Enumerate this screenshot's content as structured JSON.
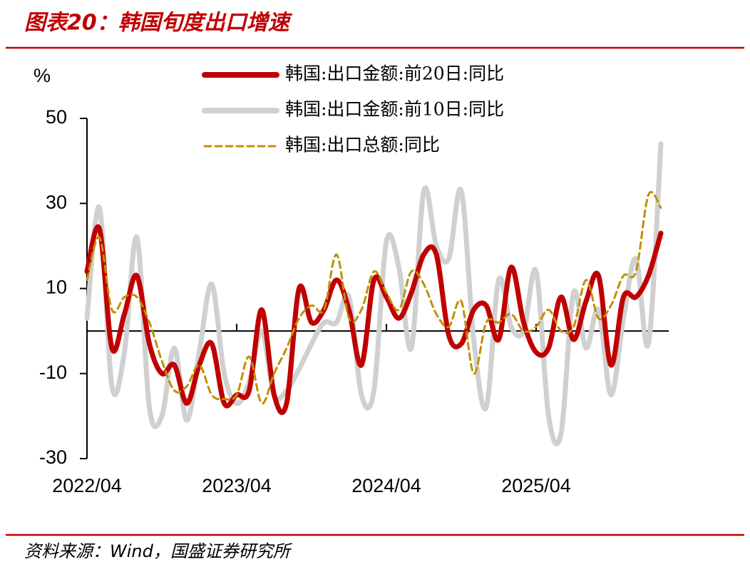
{
  "chart_data": {
    "type": "line",
    "title": "图表20：韩国旬度出口增速",
    "source": "资料来源：Wind，国盛证券研究所",
    "y_label": "%",
    "categories": [
      "2022/04",
      null,
      null,
      null,
      null,
      null,
      null,
      null,
      null,
      null,
      null,
      null,
      "2023/04",
      null,
      null,
      null,
      null,
      null,
      null,
      null,
      null,
      null,
      null,
      null,
      "2024/04",
      null,
      null,
      null,
      null,
      null,
      null,
      null,
      null,
      null,
      null,
      null,
      "2025/04",
      null,
      null,
      null,
      null,
      null,
      null,
      null,
      null,
      null,
      null
    ],
    "series": [
      {
        "name": "韩国:出口金额:前20日:同比",
        "color": "#c00000",
        "width": 7,
        "dash": false,
        "values": [
          14,
          24,
          -4,
          4,
          13,
          -3,
          -10,
          -8,
          -17,
          -8,
          -3,
          -17,
          -15,
          -14,
          5,
          -15,
          -17,
          10,
          2,
          5,
          12,
          5,
          -8,
          12,
          8,
          3,
          9,
          18,
          18,
          -1,
          -3,
          5,
          6,
          -2,
          15,
          2,
          -5,
          -4,
          8,
          -2,
          7,
          13,
          -8,
          8,
          8,
          13,
          23
        ]
      },
      {
        "name": "韩国:出口金额:前10日:同比",
        "color": "#d0d0d0",
        "width": 7,
        "dash": false,
        "values": [
          3,
          29,
          -13,
          -5,
          22,
          -18,
          -20,
          -4,
          -21,
          -5,
          11,
          -10,
          -17,
          -12,
          0,
          -15,
          -14,
          -9,
          -3,
          2,
          2,
          8,
          -15,
          -14,
          21,
          15,
          -4,
          33,
          20,
          17,
          33,
          -2,
          -18,
          12,
          1,
          0,
          14,
          -20,
          -24,
          9,
          -4,
          5,
          -15,
          3,
          17,
          -3,
          44
        ]
      },
      {
        "name": "韩国:出口总额:同比",
        "color": "#c09000",
        "width": 3,
        "dash": true,
        "values": [
          12,
          22,
          5,
          8,
          8,
          2,
          -7,
          -14,
          -13,
          -8,
          -15,
          -16,
          -15,
          -6,
          -17,
          -10,
          -4,
          3,
          6,
          5,
          18,
          3,
          5,
          14,
          9,
          5,
          14,
          11,
          4,
          1,
          7,
          -10,
          2,
          2,
          4,
          0,
          1,
          5,
          0,
          1,
          12,
          3,
          6,
          13,
          14,
          32,
          29
        ]
      }
    ],
    "ylim": [
      -30,
      50
    ],
    "yticks": [
      -30,
      -10,
      10,
      30,
      50
    ],
    "legend": "top"
  }
}
